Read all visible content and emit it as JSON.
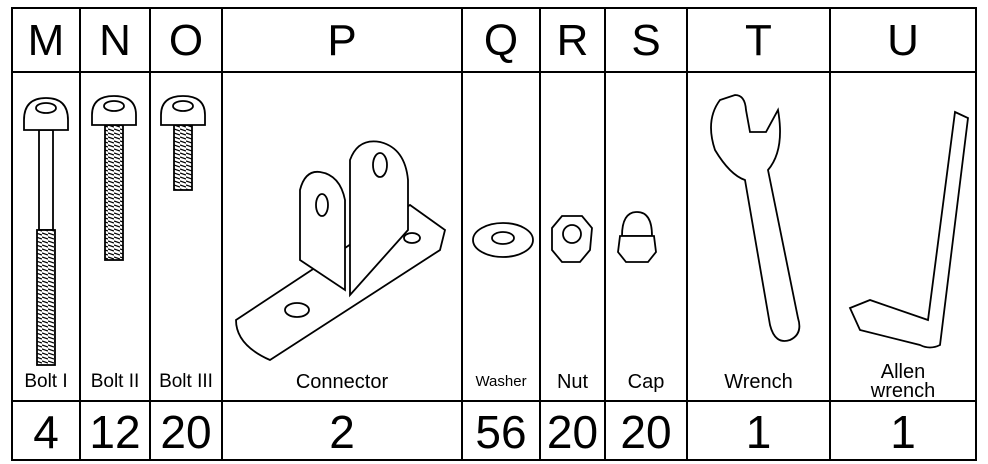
{
  "table": {
    "columns": [
      {
        "letter": "M",
        "name": "Bolt I",
        "count": 4
      },
      {
        "letter": "N",
        "name": "Bolt II",
        "count": 12
      },
      {
        "letter": "O",
        "name": "Bolt III",
        "count": 20
      },
      {
        "letter": "P",
        "name": "Connector",
        "count": 2
      },
      {
        "letter": "Q",
        "name": "Washer",
        "count": 56
      },
      {
        "letter": "R",
        "name": "Nut",
        "count": 20
      },
      {
        "letter": "S",
        "name": "Cap",
        "count": 20
      },
      {
        "letter": "T",
        "name": "Wrench",
        "count": 1
      },
      {
        "letter": "U",
        "name": "Allen wrench",
        "count": 1
      }
    ]
  }
}
